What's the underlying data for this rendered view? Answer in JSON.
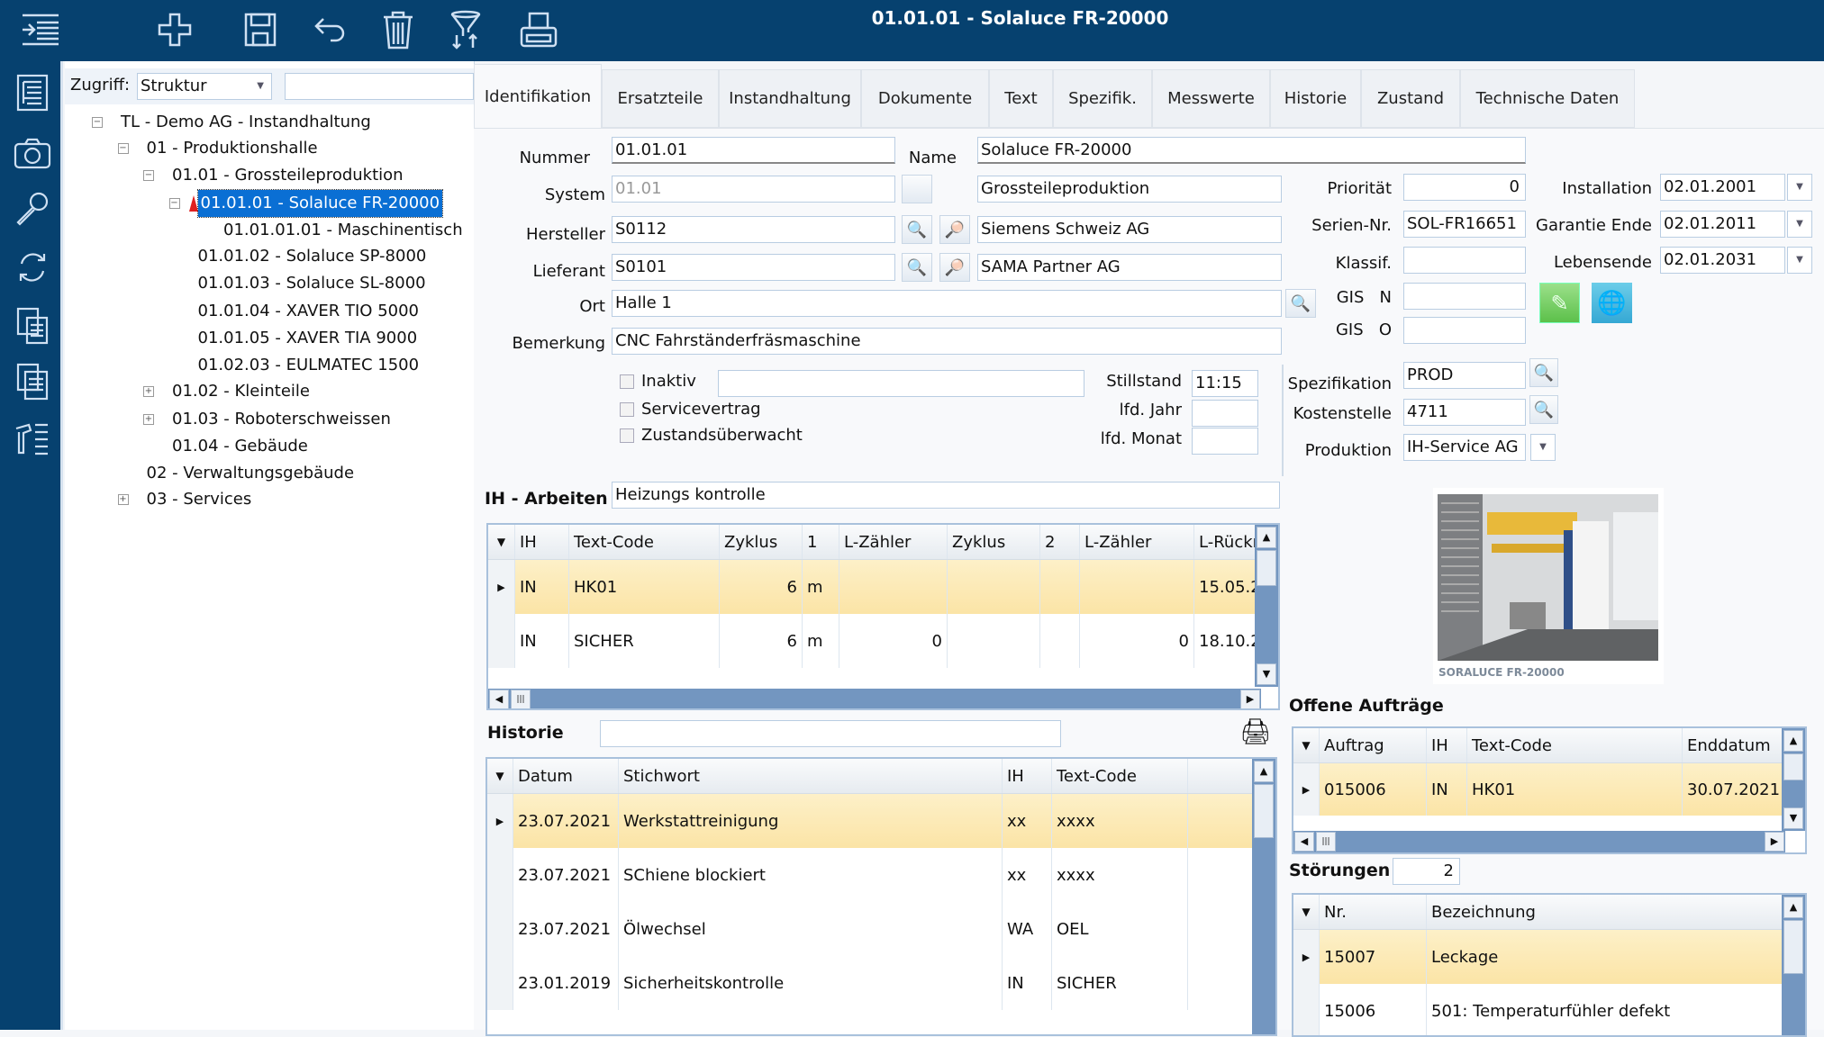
{
  "window": {
    "title": "01.01.01 - Solaluce FR-20000"
  },
  "toolbar": [
    "indent-menu-icon",
    "plus-icon",
    "save-icon",
    "undo-icon",
    "trash-icon",
    "filter-sort-icon",
    "printer-icon"
  ],
  "sidebar_icons": [
    "tree-list-icon",
    "camera-icon",
    "wrench-icon",
    "refresh-icon",
    "documents-icon",
    "copy-documents-icon",
    "tools-list-icon"
  ],
  "tree_panel": {
    "zugriff_label": "Zugriff:",
    "zugriff_value": "Struktur",
    "search_value": "",
    "items": [
      {
        "label": "TL - Demo AG - Instandhaltung",
        "level": 0,
        "expander": "minus"
      },
      {
        "label": "01 - Produktionshalle",
        "level": 1,
        "expander": "minus"
      },
      {
        "label": "01.01 - Grossteileproduktion",
        "level": 2,
        "expander": "minus"
      },
      {
        "label": "01.01.01 - Solaluce FR-20000",
        "level": 3,
        "expander": "minus",
        "selected": true,
        "alert": true
      },
      {
        "label": "01.01.01.01 - Maschinentisch",
        "level": 4
      },
      {
        "label": "01.01.02 - Solaluce SP-8000",
        "level": 3
      },
      {
        "label": "01.01.03 - Solaluce SL-8000",
        "level": 3
      },
      {
        "label": "01.01.04 - XAVER TIO 5000",
        "level": 3
      },
      {
        "label": "01.01.05 - XAVER TIA 9000",
        "level": 3
      },
      {
        "label": "01.02.03 - EULMATEC 1500",
        "level": 3
      },
      {
        "label": "01.02 - Kleinteile",
        "level": 2,
        "expander": "plus"
      },
      {
        "label": "01.03 - Roboterschweissen",
        "level": 2,
        "expander": "plus"
      },
      {
        "label": "01.04 - Gebäude",
        "level": 2
      },
      {
        "label": "02 - Verwaltungsgebäude",
        "level": 1
      },
      {
        "label": "03 - Services",
        "level": 1,
        "expander": "plus"
      }
    ]
  },
  "tabs": [
    "Identifikation",
    "Ersatzteile",
    "Instandhaltung",
    "Dokumente",
    "Text",
    "Spezifik.",
    "Messwerte",
    "Historie",
    "Zustand",
    "Technische Daten"
  ],
  "active_tab": "Identifikation",
  "form": {
    "nummer_label": "Nummer",
    "nummer": "01.01.01",
    "name_label": "Name",
    "name": "Solaluce FR-20000",
    "system_label": "System",
    "system": "01.01",
    "system_name": "Grossteileproduktion",
    "hersteller_label": "Hersteller",
    "hersteller": "S0112",
    "hersteller_name": "Siemens Schweiz AG",
    "lieferant_label": "Lieferant",
    "lieferant": "S0101",
    "lieferant_name": "SAMA Partner AG",
    "ort_label": "Ort",
    "ort": "Halle 1",
    "bemerkung_label": "Bemerkung",
    "bemerkung": "CNC Fahrständerfräsmaschine",
    "prioritaet_label": "Priorität",
    "prioritaet": "0",
    "seriennr_label": "Serien-Nr.",
    "seriennr": "SOL-FR16651",
    "klassif_label": "Klassif.",
    "klassif": "",
    "gis_n_label": "GIS   N",
    "gis_n": "",
    "gis_o_label": "GIS   O",
    "gis_o": "",
    "installation_label": "Installation",
    "installation": "02.01.2001",
    "garantie_label": "Garantie Ende",
    "garantie": "02.01.2011",
    "lebensende_label": "Lebensende",
    "lebensende": "02.01.2031",
    "inaktiv_label": "Inaktiv",
    "inaktiv_text": "",
    "servicevertrag_label": "Servicevertrag",
    "zustand_label": "Zustandsüberwacht",
    "stillstand_label": "Stillstand",
    "stillstand": "11:15",
    "ifd_jahr_label": "lfd. Jahr",
    "ifd_jahr": "",
    "ifd_monat_label": "lfd. Monat",
    "ifd_monat": "",
    "spezifikation_label": "Spezifikation",
    "spezifikation": "PROD",
    "kostenstelle_label": "Kostenstelle",
    "kostenstelle": "4711",
    "produktion_label": "Produktion",
    "produktion": "IH-Service AG"
  },
  "ih_arbeiten": {
    "label": "IH - Arbeiten",
    "text": "Heizungs kontrolle",
    "columns": [
      "IH",
      "Text-Code",
      "Zyklus",
      "1",
      "L-Zähler",
      "Zyklus",
      "2",
      "L-Zähler",
      "L-Rückm"
    ],
    "rows": [
      {
        "cells": [
          "IN",
          "HK01",
          "6",
          "m",
          "",
          "",
          "",
          "",
          "15.05.2"
        ],
        "selected": true
      },
      {
        "cells": [
          "IN",
          "SICHER",
          "6",
          "m",
          "0",
          "",
          "",
          "0",
          "18.10.2"
        ]
      }
    ]
  },
  "historie": {
    "label": "Historie",
    "text": "",
    "columns": [
      "Datum",
      "Stichwort",
      "IH",
      "Text-Code"
    ],
    "rows": [
      {
        "cells": [
          "23.07.2021",
          "Werkstattreinigung",
          "xx",
          "xxxx"
        ],
        "selected": true
      },
      {
        "cells": [
          "23.07.2021",
          "SChiene blockiert",
          "xx",
          "xxxx"
        ]
      },
      {
        "cells": [
          "23.07.2021",
          "Ölwechsel",
          "WA",
          "OEL"
        ]
      },
      {
        "cells": [
          "23.01.2019",
          "Sicherheitskontrolle",
          "IN",
          "SICHER"
        ]
      }
    ]
  },
  "machine_image": {
    "caption": "SORALUCE FR-20000"
  },
  "offene_auftraege": {
    "label": "Offene Aufträge",
    "columns": [
      "Auftrag",
      "IH",
      "Text-Code",
      "Enddatum"
    ],
    "rows": [
      {
        "cells": [
          "015006",
          "IN",
          "HK01",
          "30.07.2021"
        ],
        "selected": true
      }
    ]
  },
  "stoerungen": {
    "label": "Störungen",
    "count": "2",
    "columns": [
      "Nr.",
      "Bezeichnung"
    ],
    "rows": [
      {
        "cells": [
          "15007",
          "Leckage"
        ],
        "selected": true
      },
      {
        "cells": [
          "15006",
          "501: Temperaturfühler defekt"
        ]
      }
    ]
  },
  "colors": {
    "titlebar": "#06416f",
    "selection": "#0a6fd4",
    "row_highlight": "#fbe4a6"
  }
}
